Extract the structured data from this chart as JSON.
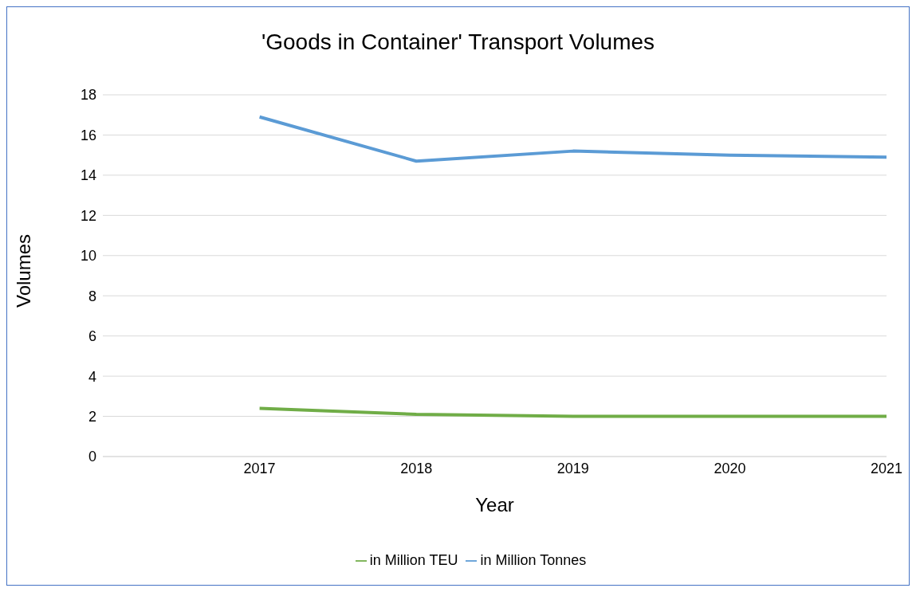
{
  "chart_data": {
    "type": "line",
    "title": "'Goods in Container' Transport Volumes",
    "xlabel": "Year",
    "ylabel": "Volumes",
    "categories": [
      null,
      "2017",
      "2018",
      "2019",
      "2020",
      "2021"
    ],
    "series": [
      {
        "name": "in Million TEU",
        "color": "#70ad47",
        "values": [
          null,
          2.4,
          2.1,
          2.0,
          2.0,
          2.0
        ]
      },
      {
        "name": "in Million Tonnes",
        "color": "#5b9bd5",
        "values": [
          null,
          16.9,
          14.7,
          15.2,
          15.0,
          14.9
        ]
      }
    ],
    "ylim": [
      0,
      18
    ],
    "yticks": [
      0,
      2,
      4,
      6,
      8,
      10,
      12,
      14,
      16,
      18
    ],
    "grid": "y",
    "legend": "bottom",
    "marker": "none",
    "line_style": "solid"
  }
}
